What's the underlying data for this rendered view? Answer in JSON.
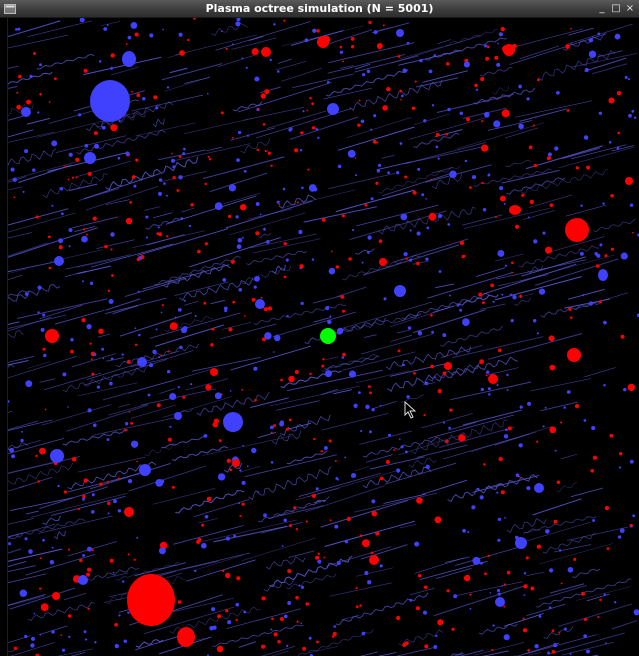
{
  "window": {
    "title": "Plasma octree simulation (N = 5001)",
    "minimize_glyph": "_",
    "maximize_glyph": "□",
    "close_glyph": "×",
    "menu_icon": "window-menu-icon"
  },
  "simulation": {
    "particle_count_label": "N = 5001",
    "colors": {
      "background": "#000000",
      "positive_ion": "#ff0000",
      "electron": "#4040ff",
      "trail": "#5a5ad8",
      "tracked_particle": "#00ff00",
      "titlebar": "#3a3a3a"
    },
    "particle_types": [
      "positive-ion",
      "electron",
      "tracked-particle"
    ],
    "cursor_icon": "arrow-cursor-icon"
  }
}
